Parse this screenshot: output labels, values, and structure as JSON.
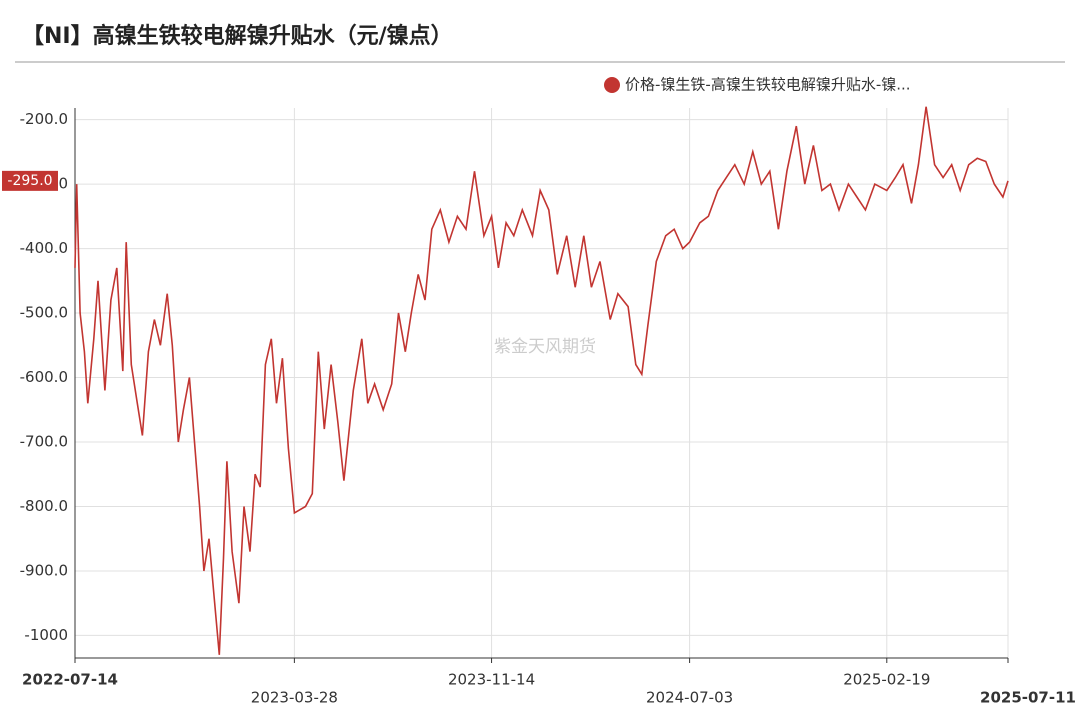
{
  "chart_data": {
    "type": "line",
    "title": "【NI】高镍生铁较电解镍升贴水（元/镍点）",
    "watermark": "紫金天风期货",
    "x": [
      "2022-07-14",
      "2022-07-16",
      "2022-07-20",
      "2022-07-25",
      "2022-07-29",
      "2022-08-05",
      "2022-08-10",
      "2022-08-18",
      "2022-08-25",
      "2022-09-01",
      "2022-09-08",
      "2022-09-12",
      "2022-09-18",
      "2022-09-25",
      "2022-10-01",
      "2022-10-08",
      "2022-10-15",
      "2022-10-22",
      "2022-10-30",
      "2022-11-05",
      "2022-11-12",
      "2022-11-18",
      "2022-11-25",
      "2022-12-01",
      "2022-12-07",
      "2022-12-12",
      "2022-12-18",
      "2022-12-24",
      "2022-12-30",
      "2023-01-04",
      "2023-01-08",
      "2023-01-14",
      "2023-01-22",
      "2023-01-28",
      "2023-02-04",
      "2023-02-10",
      "2023-02-16",
      "2023-02-22",
      "2023-03-01",
      "2023-03-07",
      "2023-03-14",
      "2023-03-21",
      "2023-03-28",
      "2023-04-10",
      "2023-04-18",
      "2023-04-25",
      "2023-05-02",
      "2023-05-10",
      "2023-05-18",
      "2023-05-25",
      "2023-06-05",
      "2023-06-15",
      "2023-06-22",
      "2023-06-30",
      "2023-07-10",
      "2023-07-20",
      "2023-07-28",
      "2023-08-05",
      "2023-08-12",
      "2023-08-20",
      "2023-08-28",
      "2023-09-05",
      "2023-09-15",
      "2023-09-25",
      "2023-10-05",
      "2023-10-15",
      "2023-10-25",
      "2023-11-05",
      "2023-11-14",
      "2023-11-22",
      "2023-12-01",
      "2023-12-10",
      "2023-12-20",
      "2024-01-01",
      "2024-01-10",
      "2024-01-20",
      "2024-01-30",
      "2024-02-10",
      "2024-02-20",
      "2024-03-01",
      "2024-03-10",
      "2024-03-20",
      "2024-04-01",
      "2024-04-10",
      "2024-04-22",
      "2024-05-01",
      "2024-05-08",
      "2024-05-15",
      "2024-05-25",
      "2024-06-05",
      "2024-06-15",
      "2024-06-25",
      "2024-07-03",
      "2024-07-15",
      "2024-07-25",
      "2024-08-05",
      "2024-08-15",
      "2024-08-25",
      "2024-09-05",
      "2024-09-15",
      "2024-09-25",
      "2024-10-05",
      "2024-10-15",
      "2024-10-25",
      "2024-11-05",
      "2024-11-15",
      "2024-11-25",
      "2024-12-05",
      "2024-12-15",
      "2024-12-25",
      "2025-01-05",
      "2025-01-15",
      "2025-01-25",
      "2025-02-05",
      "2025-02-19",
      "2025-03-01",
      "2025-03-10",
      "2025-03-20",
      "2025-03-28",
      "2025-04-06",
      "2025-04-16",
      "2025-04-26",
      "2025-05-06",
      "2025-05-16",
      "2025-05-26",
      "2025-06-05",
      "2025-06-15",
      "2025-06-25",
      "2025-07-05",
      "2025-07-11"
    ],
    "series": [
      {
        "name": "价格-镍生铁-高镍生铁较电解镍升贴水-镍...",
        "color": "#c23531",
        "values": [
          -430,
          -300,
          -500,
          -560,
          -640,
          -540,
          -450,
          -620,
          -480,
          -430,
          -590,
          -390,
          -580,
          -640,
          -690,
          -560,
          -510,
          -550,
          -470,
          -550,
          -700,
          -650,
          -600,
          -700,
          -800,
          -900,
          -850,
          -940,
          -1030,
          -880,
          -730,
          -870,
          -950,
          -800,
          -870,
          -750,
          -770,
          -580,
          -540,
          -640,
          -570,
          -710,
          -810,
          -800,
          -780,
          -560,
          -680,
          -580,
          -670,
          -760,
          -620,
          -540,
          -640,
          -610,
          -650,
          -610,
          -500,
          -560,
          -500,
          -440,
          -480,
          -370,
          -340,
          -390,
          -350,
          -370,
          -280,
          -380,
          -350,
          -430,
          -360,
          -380,
          -340,
          -380,
          -310,
          -340,
          -440,
          -380,
          -460,
          -380,
          -460,
          -420,
          -510,
          -470,
          -490,
          -580,
          -595,
          -520,
          -420,
          -380,
          -370,
          -400,
          -390,
          -360,
          -350,
          -310,
          -290,
          -270,
          -300,
          -250,
          -300,
          -280,
          -370,
          -280,
          -210,
          -300,
          -240,
          -310,
          -300,
          -340,
          -300,
          -320,
          -340,
          -300,
          -310,
          -290,
          -270,
          -330,
          -270,
          -180,
          -270,
          -290,
          -270,
          -310,
          -270,
          -260,
          -265,
          -300,
          -320,
          -295
        ],
        "value_labels": [
          null,
          null,
          null,
          null,
          null,
          null,
          null,
          null,
          null,
          null,
          null,
          null,
          null,
          null,
          null,
          null,
          null,
          null,
          null,
          null,
          null,
          null,
          null,
          null,
          null,
          null,
          null,
          null,
          null,
          null,
          null,
          null,
          null,
          null,
          null,
          null,
          null,
          null,
          null,
          null,
          null,
          null,
          null,
          null,
          null,
          null,
          null,
          null,
          null,
          null,
          null,
          null,
          null,
          null,
          null,
          null,
          null,
          null,
          null,
          null,
          null,
          null,
          null,
          null,
          null,
          null,
          null,
          null,
          null,
          null,
          null,
          null,
          null,
          null,
          null,
          null,
          null,
          null,
          null,
          null,
          null,
          null,
          null,
          null,
          null,
          null,
          null,
          null,
          null,
          null,
          null,
          null,
          null,
          null,
          null,
          null,
          null,
          null,
          null,
          null,
          null,
          null,
          null,
          null,
          null,
          null,
          null,
          null,
          null,
          null,
          null,
          null,
          null,
          null,
          null,
          null,
          null,
          null,
          null,
          null,
          null,
          null,
          null,
          null,
          null,
          null,
          null,
          null,
          null,
          "-295.0"
        ]
      }
    ],
    "xlim": [
      "2022-07-14",
      "2025-07-11"
    ],
    "xticks": [
      "2022-07-14",
      "2023-03-28",
      "2023-11-14",
      "2024-07-03",
      "2025-02-19",
      "2025-07-11"
    ],
    "ylim": [
      -1035,
      -182
    ],
    "yticks": [
      {
        "value": -200,
        "label": "-200.0"
      },
      {
        "value": -300,
        "label": "-300.0"
      },
      {
        "value": -400,
        "label": "-400.0"
      },
      {
        "value": -500,
        "label": "-500.0"
      },
      {
        "value": -600,
        "label": "-600.0"
      },
      {
        "value": -700,
        "label": "-700.0"
      },
      {
        "value": -800,
        "label": "-800.0"
      },
      {
        "value": -900,
        "label": "-900.0"
      },
      {
        "value": -1000,
        "label": "-1000"
      }
    ],
    "grid": true,
    "legend": "top-right"
  }
}
